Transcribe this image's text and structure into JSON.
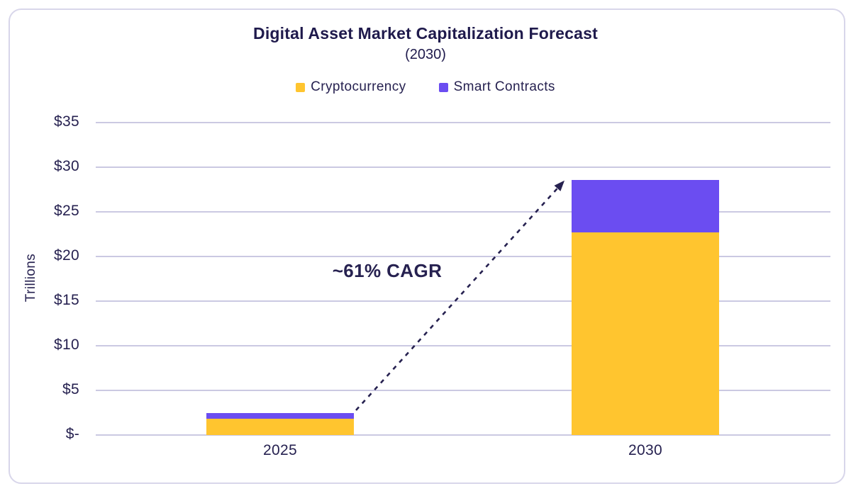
{
  "colors": {
    "text_navy": "#262150",
    "title_navy": "#1f1a4c",
    "gridline": "#cbc9e2",
    "card_border": "#d8d6ea",
    "background": "#ffffff",
    "cryptocurrency": "#ffc52f",
    "smart_contracts": "#6b4df1",
    "arrow": "#262150"
  },
  "chart_data": {
    "type": "bar",
    "stacked": true,
    "title": "Digital Asset Market Capitalization Forecast",
    "subtitle": "(2030)",
    "ylabel": "Trillions",
    "xlabel": "",
    "categories": [
      "2025",
      "2030"
    ],
    "series": [
      {
        "name": "Cryptocurrency",
        "color": "#ffc52f",
        "values": [
          1.8,
          22.7
        ]
      },
      {
        "name": "Smart Contracts",
        "color": "#6b4df1",
        "values": [
          0.7,
          5.9
        ]
      }
    ],
    "totals": [
      2.5,
      28.6
    ],
    "ylim": [
      0,
      35
    ],
    "yticks": [
      {
        "value": 0,
        "label": "$-"
      },
      {
        "value": 5,
        "label": "$5"
      },
      {
        "value": 10,
        "label": "$10"
      },
      {
        "value": 15,
        "label": "$15"
      },
      {
        "value": 20,
        "label": "$20"
      },
      {
        "value": 25,
        "label": "$25"
      },
      {
        "value": 30,
        "label": "$30"
      },
      {
        "value": 35,
        "label": "$35"
      }
    ],
    "grid": true,
    "legend_position": "top",
    "annotation": {
      "text": "~61% CAGR"
    }
  }
}
